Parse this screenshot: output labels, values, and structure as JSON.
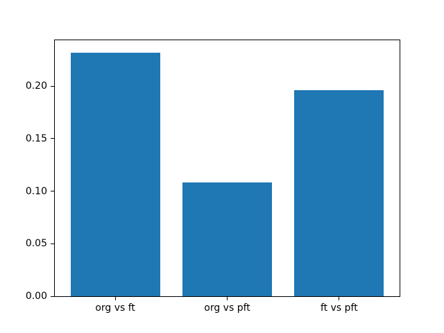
{
  "chart_data": {
    "type": "bar",
    "title": "",
    "xlabel": "",
    "ylabel": "",
    "categories": [
      "org vs ft",
      "org vs pft",
      "ft vs pft"
    ],
    "values": [
      0.232,
      0.108,
      0.196
    ],
    "bar_color": "#1f77b4",
    "bar_width": 0.8,
    "xlim": [
      -0.54,
      2.54
    ],
    "ylim": [
      0,
      0.2436
    ],
    "yticks": [
      "0.00",
      "0.05",
      "0.10",
      "0.15",
      "0.20"
    ],
    "grid": false,
    "legend": null,
    "spine_color": "#000000",
    "background_color": "#ffffff"
  }
}
